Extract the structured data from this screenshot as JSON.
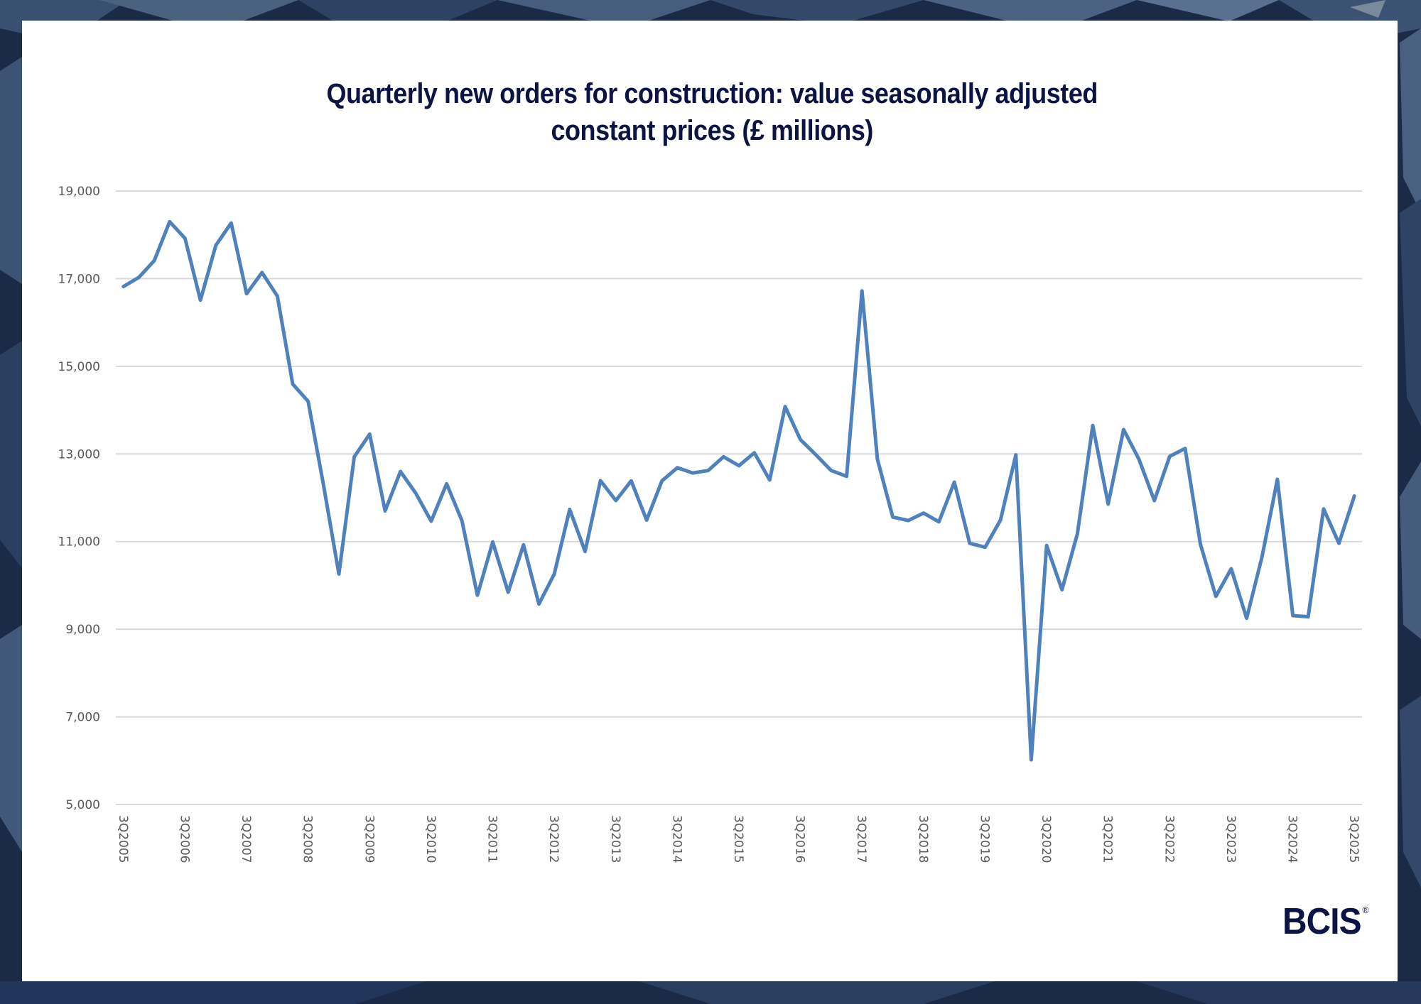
{
  "brand": {
    "logo_text": "BCIS",
    "registered_mark": "®"
  },
  "colors": {
    "line": "#4f81bd",
    "title": "#0b1443",
    "grid": "#d9d9d9",
    "axis_text": "#595959",
    "background": "#1b2b47"
  },
  "chart_data": {
    "type": "line",
    "title": "Quarterly new orders for construction: value seasonally adjusted constant prices (£ millions)",
    "title_lines": [
      "Quarterly new orders for construction: value seasonally adjusted",
      "constant prices (£ millions)"
    ],
    "xlabel": "",
    "ylabel": "",
    "ylim": [
      5000,
      19000
    ],
    "yticks": [
      5000,
      7000,
      9000,
      11000,
      13000,
      15000,
      17000,
      19000
    ],
    "ytick_labels": [
      "5,000",
      "7,000",
      "9,000",
      "11,000",
      "13,000",
      "15,000",
      "17,000",
      "19,000"
    ],
    "grid": true,
    "legend": "none",
    "x": [
      "3Q2005",
      "4Q2005",
      "1Q2006",
      "2Q2006",
      "3Q2006",
      "4Q2006",
      "1Q2007",
      "2Q2007",
      "3Q2007",
      "4Q2007",
      "1Q2008",
      "2Q2008",
      "3Q2008",
      "4Q2008",
      "1Q2009",
      "2Q2009",
      "3Q2009",
      "4Q2009",
      "1Q2010",
      "2Q2010",
      "3Q2010",
      "4Q2010",
      "1Q2011",
      "2Q2011",
      "3Q2011",
      "4Q2011",
      "1Q2012",
      "2Q2012",
      "3Q2012",
      "4Q2012",
      "1Q2013",
      "2Q2013",
      "3Q2013",
      "4Q2013",
      "1Q2014",
      "2Q2014",
      "3Q2014",
      "4Q2014",
      "1Q2015",
      "2Q2015",
      "3Q2015",
      "4Q2015",
      "1Q2016",
      "2Q2016",
      "3Q2016",
      "4Q2016",
      "1Q2017",
      "2Q2017",
      "3Q2017",
      "4Q2017",
      "1Q2018",
      "2Q2018",
      "3Q2018",
      "4Q2018",
      "1Q2019",
      "2Q2019",
      "3Q2019",
      "4Q2019",
      "1Q2020",
      "2Q2020",
      "3Q2020",
      "4Q2020",
      "1Q2021",
      "2Q2021",
      "3Q2021",
      "4Q2021",
      "1Q2022",
      "2Q2022",
      "3Q2022",
      "4Q2022",
      "1Q2023",
      "2Q2023",
      "3Q2023",
      "4Q2023",
      "1Q2024",
      "2Q2024",
      "3Q2024",
      "4Q2024",
      "1Q2025",
      "2Q2025",
      "3Q2025"
    ],
    "xtick_labels": [
      "3Q2005",
      "3Q2006",
      "3Q2007",
      "3Q2008",
      "3Q2009",
      "3Q2010",
      "3Q2011",
      "3Q2012",
      "3Q2013",
      "3Q2014",
      "3Q2015",
      "3Q2016",
      "3Q2017",
      "3Q2018",
      "3Q2019",
      "3Q2020",
      "3Q2021",
      "3Q2022",
      "3Q2023",
      "3Q2024",
      "3Q2025"
    ],
    "series": [
      {
        "name": "New orders (£m)",
        "values": [
          16820,
          17030,
          17410,
          18300,
          17920,
          16510,
          17760,
          18270,
          16655,
          17140,
          16600,
          14595,
          14200,
          12290,
          10260,
          12935,
          13450,
          11700,
          12600,
          12100,
          11465,
          12320,
          11475,
          9775,
          10990,
          9845,
          10925,
          9575,
          10260,
          11735,
          10775,
          12390,
          11935,
          12385,
          11490,
          12385,
          12685,
          12565,
          12620,
          12935,
          12730,
          13025,
          12405,
          14080,
          13325,
          12980,
          12620,
          12490,
          16720,
          12880,
          11560,
          11480,
          11650,
          11450,
          12355,
          10960,
          10870,
          11490,
          12980,
          6020,
          10910,
          9900,
          11180,
          13650,
          11855,
          13555,
          12880,
          11935,
          12945,
          13125,
          10935,
          9750,
          10380,
          9250,
          10650,
          12420,
          9310,
          9285,
          11745,
          10960,
          12040
        ]
      }
    ]
  }
}
